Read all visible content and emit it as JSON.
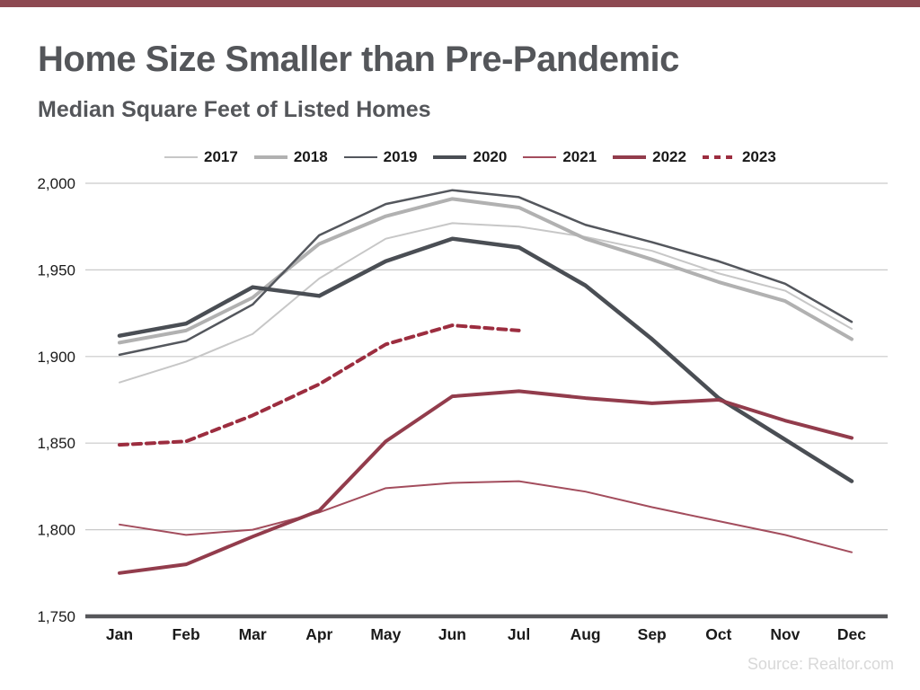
{
  "page": {
    "top_bar_color": "#8d4952",
    "background_color": "#ffffff",
    "text_color": "#54565a"
  },
  "header": {
    "title": "Home Size Smaller than Pre-Pandemic",
    "subtitle": "Median Square Feet of Listed Homes"
  },
  "footer": {
    "source": "Source: Realtor.com"
  },
  "chart_data": {
    "type": "line",
    "title": "Median Square Feet of Listed Homes",
    "categories": [
      "Jan",
      "Feb",
      "Mar",
      "Apr",
      "May",
      "Jun",
      "Jul",
      "Aug",
      "Sep",
      "Oct",
      "Nov",
      "Dec"
    ],
    "ylim": [
      1750,
      2000
    ],
    "grid": true,
    "legend_position": "top",
    "grid_color": "#c9c9c9",
    "axis_line_color": "#56575a",
    "tick_label_color": "#1a1a1a",
    "y_ticks": [
      {
        "label": "2,000",
        "value": 2000
      },
      {
        "label": "1,950",
        "value": 1950
      },
      {
        "label": "1,900",
        "value": 1900
      },
      {
        "label": "1,850",
        "value": 1850
      },
      {
        "label": "1,800",
        "value": 1800
      },
      {
        "label": "1,750",
        "value": 1750
      }
    ],
    "series": [
      {
        "name": "2017",
        "color": "#c7c7c7",
        "width": 2,
        "dash": false,
        "values": [
          1885,
          1897,
          1913,
          1945,
          1968,
          1977,
          1975,
          1969,
          1961,
          1948,
          1938,
          1916
        ]
      },
      {
        "name": "2018",
        "color": "#b1b1b1",
        "width": 4,
        "dash": false,
        "values": [
          1908,
          1915,
          1934,
          1965,
          1981,
          1991,
          1986,
          1968,
          1956,
          1943,
          1932,
          1910
        ]
      },
      {
        "name": "2019",
        "color": "#54575d",
        "width": 2.5,
        "dash": false,
        "values": [
          1901,
          1909,
          1930,
          1970,
          1988,
          1996,
          1992,
          1976,
          1966,
          1955,
          1942,
          1920
        ]
      },
      {
        "name": "2020",
        "color": "#4a4e54",
        "width": 4.5,
        "dash": false,
        "values": [
          1912,
          1919,
          1940,
          1935,
          1955,
          1968,
          1963,
          1941,
          1910,
          1876,
          1852,
          1828
        ]
      },
      {
        "name": "2021",
        "color": "#a34d5d",
        "width": 2,
        "dash": false,
        "values": [
          1803,
          1797,
          1800,
          1810,
          1824,
          1827,
          1828,
          1822,
          1813,
          1805,
          1797,
          1787
        ]
      },
      {
        "name": "2022",
        "color": "#923c4c",
        "width": 4,
        "dash": false,
        "values": [
          1775,
          1780,
          1796,
          1811,
          1851,
          1877,
          1880,
          1876,
          1873,
          1875,
          1863,
          1853
        ]
      },
      {
        "name": "2023",
        "color": "#9c2d3f",
        "width": 4,
        "dash": true,
        "values": [
          1849,
          1851,
          1866,
          1884,
          1907,
          1918,
          1915
        ]
      }
    ]
  }
}
